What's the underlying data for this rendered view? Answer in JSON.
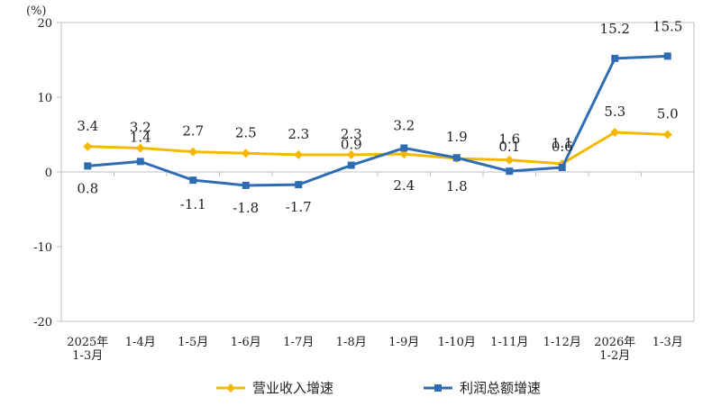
{
  "chart_data": {
    "type": "line",
    "unit_label": "(%)",
    "categories": [
      [
        "2025年",
        "1-3月"
      ],
      [
        "1-4月"
      ],
      [
        "1-5月"
      ],
      [
        "1-6月"
      ],
      [
        "1-7月"
      ],
      [
        "1-8月"
      ],
      [
        "1-9月"
      ],
      [
        "1-10月"
      ],
      [
        "1-11月"
      ],
      [
        "1-12月"
      ],
      [
        "2026年",
        "1-2月"
      ],
      [
        "1-3月"
      ]
    ],
    "ylim": [
      -20,
      20
    ],
    "yticks": [
      "20",
      "10",
      "0",
      "-10",
      "-20"
    ],
    "ytick_values": [
      20,
      10,
      0,
      -10,
      -20
    ],
    "grid": false,
    "legend_position": "bottom",
    "series": [
      {
        "name": "营业收入增速",
        "color": "#F5B800",
        "marker": "diamond",
        "values": [
          3.4,
          3.2,
          2.7,
          2.5,
          2.3,
          2.3,
          2.4,
          1.8,
          1.6,
          1.1,
          5.3,
          5.0
        ],
        "labels": [
          "3.4",
          "3.2",
          "2.7",
          "2.5",
          "2.3",
          "2.3",
          "2.4",
          "1.8",
          "1.6",
          "1.1",
          "5.3",
          "5.0"
        ]
      },
      {
        "name": "利润总额增速",
        "color": "#2E6DB4",
        "marker": "square",
        "values": [
          0.8,
          1.4,
          -1.1,
          -1.8,
          -1.7,
          0.9,
          3.2,
          1.9,
          0.1,
          0.6,
          15.2,
          15.5
        ],
        "labels": [
          "0.8",
          "1.4",
          "-1.1",
          "-1.8",
          "-1.7",
          "0.9",
          "3.2",
          "1.9",
          "0.1",
          "0.6",
          "15.2",
          "15.5"
        ]
      }
    ]
  }
}
